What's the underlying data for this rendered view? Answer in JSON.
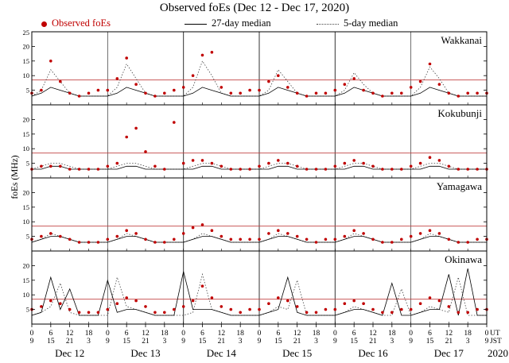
{
  "title": "Observed foEs (Dec 12 - Dec 17, 2020)",
  "ylabel": "foEs (MHz)",
  "legend": {
    "observed": "Observed foEs",
    "median27": "27-day median",
    "median5": "5-day median"
  },
  "colors": {
    "observed": "#c00000",
    "median27": "#000000",
    "median5": "#444444",
    "red_line": "#c04040"
  },
  "axis": {
    "ut_label": "UT",
    "jst_label": "JST",
    "year": "2020",
    "ut_ticks": [
      "0",
      "6",
      "12",
      "18",
      "0",
      "6",
      "12",
      "18",
      "0",
      "6",
      "12",
      "18",
      "0",
      "6",
      "12",
      "18",
      "0",
      "6",
      "12",
      "18",
      "0",
      "6",
      "12",
      "18",
      "0"
    ],
    "jst_ticks": [
      "9",
      "15",
      "21",
      "3",
      "9",
      "15",
      "21",
      "3",
      "9",
      "15",
      "21",
      "3",
      "9",
      "15",
      "21",
      "3",
      "9",
      "15",
      "21",
      "3",
      "9",
      "15",
      "21",
      "3",
      "9"
    ],
    "day_labels": [
      "Dec 12",
      "Dec 13",
      "Dec 14",
      "Dec 15",
      "Dec 16",
      "Dec 17"
    ]
  },
  "chart_data": {
    "type": "line",
    "x_start_hour": 0,
    "x_end_hour": 144,
    "x_step_hours": 3,
    "ylim": [
      0,
      25
    ],
    "yticks": [
      5,
      10,
      15,
      20
    ],
    "red_line_mhz": 8.5,
    "stations": [
      {
        "name": "Wakkanai",
        "observed": [
          4,
          5,
          15,
          8,
          4,
          3,
          4,
          5,
          5,
          9,
          16,
          7,
          4,
          3,
          4,
          5,
          6,
          10,
          17,
          18,
          6,
          4,
          4,
          5,
          5,
          8,
          10,
          6,
          4,
          3,
          4,
          4,
          5,
          7,
          9,
          5,
          4,
          3,
          4,
          4,
          6,
          8,
          14,
          7,
          4,
          3,
          4,
          4,
          4
        ],
        "median27": [
          3,
          4,
          6,
          5,
          4,
          3,
          3,
          3,
          3,
          4,
          6,
          5,
          4,
          3,
          3,
          3,
          3,
          4,
          6,
          5,
          4,
          3,
          3,
          3,
          3,
          4,
          6,
          5,
          4,
          3,
          3,
          3,
          3,
          4,
          6,
          5,
          4,
          3,
          3,
          3,
          3,
          4,
          6,
          5,
          4,
          3,
          3,
          3,
          3
        ],
        "median5": [
          3,
          5,
          12,
          8,
          4,
          3,
          3,
          3,
          3,
          6,
          14,
          9,
          4,
          3,
          3,
          3,
          3,
          6,
          15,
          10,
          4,
          3,
          3,
          3,
          3,
          5,
          12,
          8,
          4,
          3,
          3,
          3,
          3,
          5,
          11,
          7,
          4,
          3,
          3,
          3,
          3,
          6,
          13,
          9,
          4,
          3,
          3,
          3,
          3
        ]
      },
      {
        "name": "Kokubunji",
        "observed": [
          3,
          4,
          4,
          4,
          3,
          3,
          3,
          3,
          4,
          5,
          14,
          17,
          9,
          4,
          3,
          19,
          5,
          6,
          6,
          5,
          4,
          3,
          3,
          3,
          4,
          5,
          6,
          5,
          4,
          3,
          3,
          3,
          4,
          5,
          6,
          5,
          4,
          3,
          3,
          3,
          4,
          5,
          7,
          6,
          4,
          3,
          3,
          3,
          3
        ],
        "median27": [
          3,
          3,
          4,
          4,
          3,
          3,
          3,
          3,
          3,
          3,
          4,
          4,
          3,
          3,
          3,
          3,
          3,
          3,
          4,
          4,
          3,
          3,
          3,
          3,
          3,
          3,
          4,
          4,
          3,
          3,
          3,
          3,
          3,
          3,
          4,
          4,
          3,
          3,
          3,
          3,
          3,
          3,
          4,
          4,
          3,
          3,
          3,
          3,
          3
        ],
        "median5": [
          3,
          4,
          5,
          5,
          4,
          3,
          3,
          3,
          3,
          4,
          5,
          5,
          4,
          3,
          3,
          3,
          3,
          4,
          5,
          5,
          4,
          3,
          3,
          3,
          3,
          4,
          5,
          5,
          4,
          3,
          3,
          3,
          3,
          4,
          5,
          5,
          4,
          3,
          3,
          3,
          3,
          4,
          5,
          5,
          4,
          3,
          3,
          3,
          3
        ]
      },
      {
        "name": "Yamagawa",
        "observed": [
          4,
          5,
          6,
          5,
          4,
          3,
          3,
          3,
          4,
          5,
          7,
          6,
          4,
          3,
          3,
          4,
          6,
          8,
          9,
          7,
          5,
          4,
          4,
          4,
          4,
          6,
          7,
          6,
          5,
          4,
          3,
          4,
          4,
          5,
          7,
          6,
          4,
          3,
          3,
          4,
          5,
          6,
          7,
          6,
          4,
          3,
          3,
          4,
          4
        ],
        "median27": [
          3,
          4,
          5,
          5,
          4,
          3,
          3,
          3,
          3,
          4,
          5,
          5,
          4,
          3,
          3,
          3,
          3,
          4,
          5,
          5,
          4,
          3,
          3,
          3,
          3,
          4,
          5,
          5,
          4,
          3,
          3,
          3,
          3,
          4,
          5,
          5,
          4,
          3,
          3,
          3,
          3,
          4,
          5,
          5,
          4,
          3,
          3,
          3,
          3
        ],
        "median5": [
          3,
          4,
          6,
          5,
          4,
          3,
          3,
          3,
          3,
          4,
          6,
          5,
          4,
          3,
          3,
          3,
          3,
          4,
          6,
          5,
          4,
          3,
          3,
          3,
          3,
          4,
          6,
          5,
          4,
          3,
          3,
          3,
          3,
          4,
          6,
          5,
          4,
          3,
          3,
          3,
          3,
          4,
          6,
          5,
          4,
          3,
          3,
          3,
          3
        ]
      },
      {
        "name": "Okinawa",
        "observed": [
          5,
          6,
          8,
          7,
          5,
          4,
          4,
          4,
          5,
          7,
          9,
          8,
          6,
          4,
          4,
          5,
          6,
          8,
          13,
          9,
          6,
          5,
          4,
          5,
          5,
          7,
          9,
          8,
          6,
          4,
          4,
          5,
          5,
          7,
          8,
          7,
          5,
          4,
          4,
          5,
          5,
          7,
          9,
          8,
          6,
          4,
          4,
          5,
          5
        ],
        "median27": [
          3,
          4,
          16,
          5,
          12,
          3,
          3,
          3,
          15,
          4,
          5,
          5,
          4,
          3,
          3,
          3,
          18,
          5,
          5,
          5,
          4,
          3,
          3,
          3,
          3,
          4,
          5,
          16,
          4,
          3,
          3,
          3,
          3,
          4,
          5,
          5,
          4,
          3,
          14,
          3,
          3,
          4,
          5,
          5,
          17,
          3,
          19,
          3,
          3
        ],
        "median5": [
          3,
          4,
          6,
          14,
          4,
          3,
          3,
          3,
          3,
          16,
          6,
          5,
          4,
          3,
          3,
          3,
          3,
          4,
          17,
          5,
          4,
          3,
          3,
          3,
          3,
          4,
          6,
          5,
          15,
          3,
          3,
          3,
          3,
          4,
          6,
          5,
          4,
          3,
          3,
          12,
          3,
          4,
          6,
          5,
          4,
          16,
          3,
          3,
          3
        ]
      }
    ]
  }
}
